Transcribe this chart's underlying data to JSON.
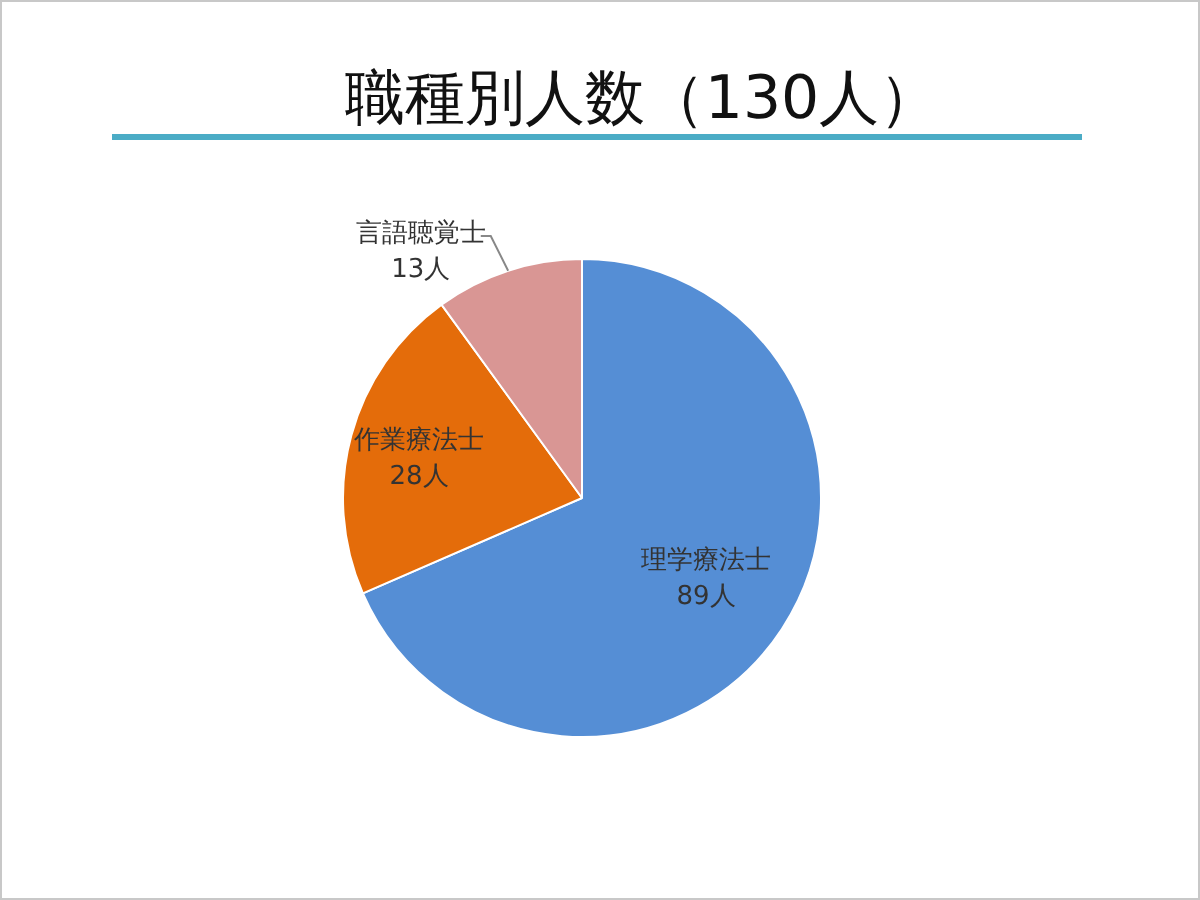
{
  "chart_data": {
    "type": "pie",
    "title": "職種別人数（130人）",
    "categories": [
      "理学療法士",
      "作業療法士",
      "言語聴覚士"
    ],
    "values": [
      89,
      28,
      13
    ],
    "colors": [
      "#558ed5",
      "#e46c0a",
      "#d99694"
    ],
    "value_labels": [
      "89人",
      "28人",
      "13人"
    ],
    "legend": false
  }
}
